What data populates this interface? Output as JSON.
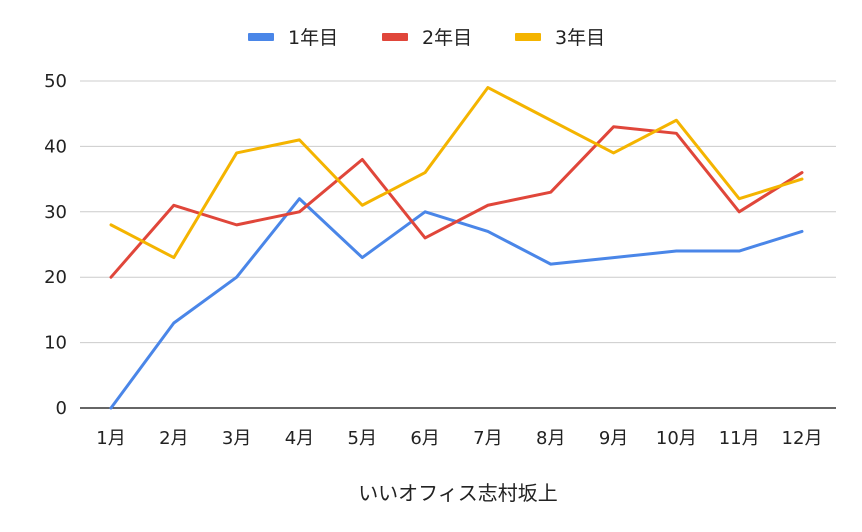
{
  "chart_data": {
    "type": "line",
    "title": "",
    "xlabel": "いいオフィス志村坂上",
    "ylabel": "",
    "categories": [
      "1月",
      "2月",
      "3月",
      "4月",
      "5月",
      "6月",
      "7月",
      "8月",
      "9月",
      "10月",
      "11月",
      "12月"
    ],
    "ylim": [
      0,
      50
    ],
    "yticks": [
      0,
      10,
      20,
      30,
      40,
      50
    ],
    "grid": true,
    "legend": "top-center",
    "series": [
      {
        "name": "1年目",
        "color": "#4a86e8",
        "values": [
          0,
          13,
          20,
          32,
          23,
          30,
          27,
          22,
          23,
          24,
          24,
          27
        ]
      },
      {
        "name": "2年目",
        "color": "#e0463a",
        "values": [
          20,
          31,
          28,
          30,
          38,
          26,
          31,
          33,
          43,
          42,
          30,
          36
        ]
      },
      {
        "name": "3年目",
        "color": "#f4b400",
        "values": [
          28,
          23,
          39,
          41,
          31,
          36,
          49,
          44,
          39,
          44,
          32,
          35
        ]
      }
    ]
  }
}
